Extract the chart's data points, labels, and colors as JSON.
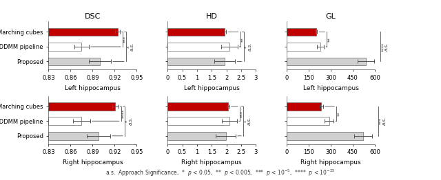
{
  "rows": [
    "Left hippocampus",
    "Right hippocampus"
  ],
  "cols": [
    "DSC",
    "HD",
    "GL"
  ],
  "methods": [
    "Proposed",
    "LDDMM pipeline",
    "Marching cubes"
  ],
  "bar_colors": [
    "#c00000",
    "#ffffff",
    "#d0d0d0"
  ],
  "bar_edgecolor": "#666666",
  "xlims": {
    "DSC": [
      0.83,
      0.95
    ],
    "HD": [
      0,
      3
    ],
    "GL": [
      0,
      600
    ]
  },
  "xticks": {
    "DSC": [
      0.83,
      0.86,
      0.89,
      0.92,
      0.95
    ],
    "HD": [
      0,
      0.5,
      1,
      1.5,
      2,
      2.5,
      3
    ],
    "GL": [
      0,
      150,
      300,
      450,
      600
    ]
  },
  "data": {
    "Left hippocampus": {
      "DSC": {
        "values": [
          0.924,
          0.875,
          0.9
        ],
        "errors": [
          0.003,
          0.01,
          0.015
        ]
      },
      "HD": {
        "values": [
          1.95,
          2.1,
          1.95
        ],
        "errors": [
          0.04,
          0.28,
          0.35
        ]
      },
      "GL": {
        "values": [
          200,
          230,
          540
        ],
        "errors": [
          8,
          25,
          55
        ]
      }
    },
    "Right hippocampus": {
      "DSC": {
        "values": [
          0.921,
          0.875,
          0.898
        ],
        "errors": [
          0.004,
          0.012,
          0.016
        ]
      },
      "HD": {
        "values": [
          2.05,
          2.1,
          1.98
        ],
        "errors": [
          0.05,
          0.26,
          0.34
        ]
      },
      "GL": {
        "values": [
          235,
          290,
          520
        ],
        "errors": [
          12,
          30,
          60
        ]
      }
    }
  },
  "sig_inner": {
    "Left hippocampus": {
      "DSC": "***",
      "HD": "**",
      "GL": "**"
    },
    "Right hippocampus": {
      "DSC": "****",
      "HD": "***",
      "GL": "**"
    }
  },
  "sig_outer": {
    "Left hippocampus": {
      "DSC": "*",
      "HD": "*",
      "GL": "****"
    },
    "Right hippocampus": {
      "DSC": "*",
      "HD": "*",
      "GL": "***"
    }
  }
}
